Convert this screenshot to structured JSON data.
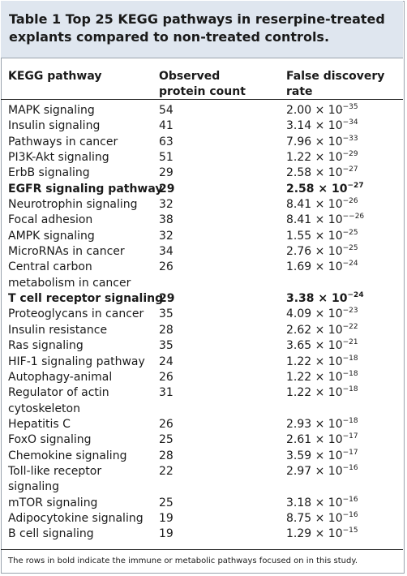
{
  "title": "Table 1 Top 25 KEGG pathways in reserpine-treated explants compared to non-treated controls.",
  "headers": {
    "pathway": "KEGG pathway",
    "count_line1": "Observed",
    "count_line2": "protein count",
    "fdr": "False discovery rate"
  },
  "rows": [
    {
      "pathway": [
        "MAPK signaling"
      ],
      "count": "54",
      "mantissa": "2.00 × 10",
      "exponent": "−35",
      "bold": false
    },
    {
      "pathway": [
        "Insulin signaling"
      ],
      "count": "41",
      "mantissa": "3.14 × 10",
      "exponent": "−34",
      "bold": false
    },
    {
      "pathway": [
        "Pathways in cancer"
      ],
      "count": "63",
      "mantissa": "7.96 × 10",
      "exponent": "−33",
      "bold": false
    },
    {
      "pathway": [
        "PI3K-Akt signaling"
      ],
      "count": "51",
      "mantissa": "1.22 × 10",
      "exponent": "−29",
      "bold": false
    },
    {
      "pathway": [
        "ErbB signaling"
      ],
      "count": "29",
      "mantissa": "2.58 × 10",
      "exponent": "−27",
      "bold": false
    },
    {
      "pathway": [
        "EGFR signaling pathway"
      ],
      "count": "29",
      "mantissa": "2.58 × 10",
      "exponent": "−27",
      "bold": true
    },
    {
      "pathway": [
        "Neurotrophin signaling"
      ],
      "count": "32",
      "mantissa": "8.41 × 10",
      "exponent": "−26",
      "bold": false
    },
    {
      "pathway": [
        "Focal adhesion"
      ],
      "count": "38",
      "mantissa": "8.41 × 10",
      "exponent": "−−26",
      "bold": false
    },
    {
      "pathway": [
        "AMPK signaling"
      ],
      "count": "32",
      "mantissa": "1.55 × 10",
      "exponent": "−25",
      "bold": false
    },
    {
      "pathway": [
        "MicroRNAs in cancer"
      ],
      "count": "34",
      "mantissa": "2.76 × 10",
      "exponent": "−25",
      "bold": false
    },
    {
      "pathway": [
        "Central carbon",
        "metabolism in cancer"
      ],
      "count": "26",
      "mantissa": "1.69 × 10",
      "exponent": "−24",
      "bold": false
    },
    {
      "pathway": [
        "T cell receptor signaling"
      ],
      "count": "29",
      "mantissa": "3.38 × 10",
      "exponent": "−24",
      "bold": true
    },
    {
      "pathway": [
        "Proteoglycans in cancer"
      ],
      "count": "35",
      "mantissa": "4.09 × 10",
      "exponent": "−23",
      "bold": false
    },
    {
      "pathway": [
        "Insulin resistance"
      ],
      "count": "28",
      "mantissa": "2.62 × 10",
      "exponent": "−22",
      "bold": false
    },
    {
      "pathway": [
        "Ras signaling"
      ],
      "count": "35",
      "mantissa": "3.65 × 10",
      "exponent": "−21",
      "bold": false
    },
    {
      "pathway": [
        "HIF-1 signaling pathway"
      ],
      "count": "24",
      "mantissa": "1.22 × 10",
      "exponent": "−18",
      "bold": false
    },
    {
      "pathway": [
        "Autophagy-animal"
      ],
      "count": "26",
      "mantissa": "1.22 × 10",
      "exponent": "−18",
      "bold": false
    },
    {
      "pathway": [
        "Regulator of actin",
        "cytoskeleton"
      ],
      "count": "31",
      "mantissa": "1.22 × 10",
      "exponent": "−18",
      "bold": false
    },
    {
      "pathway": [
        "Hepatitis C"
      ],
      "count": "26",
      "mantissa": "2.93 × 10",
      "exponent": "−18",
      "bold": false
    },
    {
      "pathway": [
        "FoxO signaling"
      ],
      "count": "25",
      "mantissa": "2.61 × 10",
      "exponent": "−17",
      "bold": false
    },
    {
      "pathway": [
        "Chemokine signaling"
      ],
      "count": "28",
      "mantissa": "3.59 × 10",
      "exponent": "−17",
      "bold": false
    },
    {
      "pathway": [
        "Toll-like receptor",
        "signaling"
      ],
      "count": "22",
      "mantissa": "2.97 × 10",
      "exponent": "−16",
      "bold": false
    },
    {
      "pathway": [
        "mTOR signaling"
      ],
      "count": "25",
      "mantissa": "3.18 × 10",
      "exponent": "−16",
      "bold": false
    },
    {
      "pathway": [
        "Adipocytokine signaling"
      ],
      "count": "19",
      "mantissa": "8.75 × 10",
      "exponent": "−16",
      "bold": false
    },
    {
      "pathway": [
        "B cell signaling"
      ],
      "count": "19",
      "mantissa": "1.29 × 10",
      "exponent": "−15",
      "bold": false
    }
  ],
  "footnote": "The rows in bold indicate the immune or metabolic pathways focused on in this study.",
  "colors": {
    "title_band": "#dfe6ef",
    "border": "#9aa3ad",
    "text": "#1a1a1a"
  }
}
